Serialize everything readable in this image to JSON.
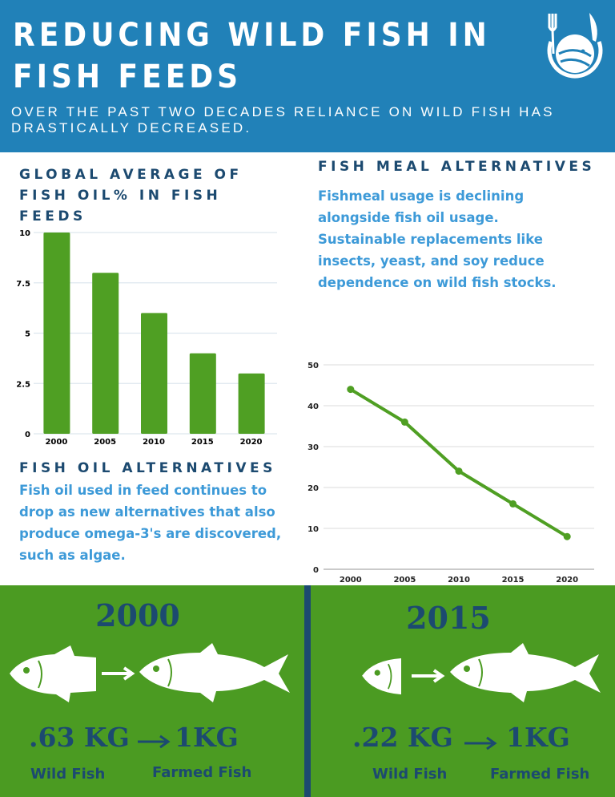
{
  "header": {
    "title": "Reducing wild fish in fish feeds",
    "subtitle": "OVER THE PAST TWO DECADES RELIANCE ON WILD FISH HAS DRASTICALLY DECREASED.",
    "logo": "fork-knife-fish-plate-logo"
  },
  "left": {
    "heading": "GLOBAL AVERAGE OF FISH OIL% IN FISH FEEDS",
    "section_heading": "FISH OIL ALTERNATIVES",
    "text": "Fish oil used in feed continues to drop as new alternatives that also produce omega-3's are discovered, such as algae."
  },
  "right": {
    "heading": "FISH MEAL ALTERNATIVES",
    "text": "Fishmeal usage is declining alongside fish oil usage. Sustainable replacements like insects, yeast, and soy reduce dependence on wild fish stocks."
  },
  "colors": {
    "blue": "#2181b8",
    "navy": "#1c4a70",
    "green": "#4b9b22",
    "text_blue": "#3d9ad8"
  },
  "chart_data": [
    {
      "type": "bar",
      "categories": [
        "2000",
        "2005",
        "2010",
        "2015",
        "2020"
      ],
      "values": [
        10,
        8,
        6,
        4,
        3
      ],
      "yticks": [
        "0",
        "2.5",
        "5",
        "7.5",
        "10"
      ],
      "ylim": [
        0,
        10
      ],
      "grid": true,
      "color": "#4f9f23"
    },
    {
      "type": "line",
      "categories": [
        "2000",
        "2005",
        "2010",
        "2015",
        "2020"
      ],
      "values": [
        44,
        36,
        24,
        16,
        8
      ],
      "yticks": [
        "0",
        "10",
        "20",
        "30",
        "40",
        "50"
      ],
      "ylim": [
        0,
        50
      ],
      "grid": true,
      "color": "#4f9f23"
    }
  ],
  "comparison": [
    {
      "year": "2000",
      "wild_amount": ".63 KG",
      "farmed_amount": "1KG",
      "wild_label": "Wild Fish",
      "farmed_label": "Farmed Fish"
    },
    {
      "year": "2015",
      "wild_amount": ".22 KG",
      "farmed_amount": "1KG",
      "wild_label": "Wild Fish",
      "farmed_label": "Farmed Fish"
    }
  ]
}
